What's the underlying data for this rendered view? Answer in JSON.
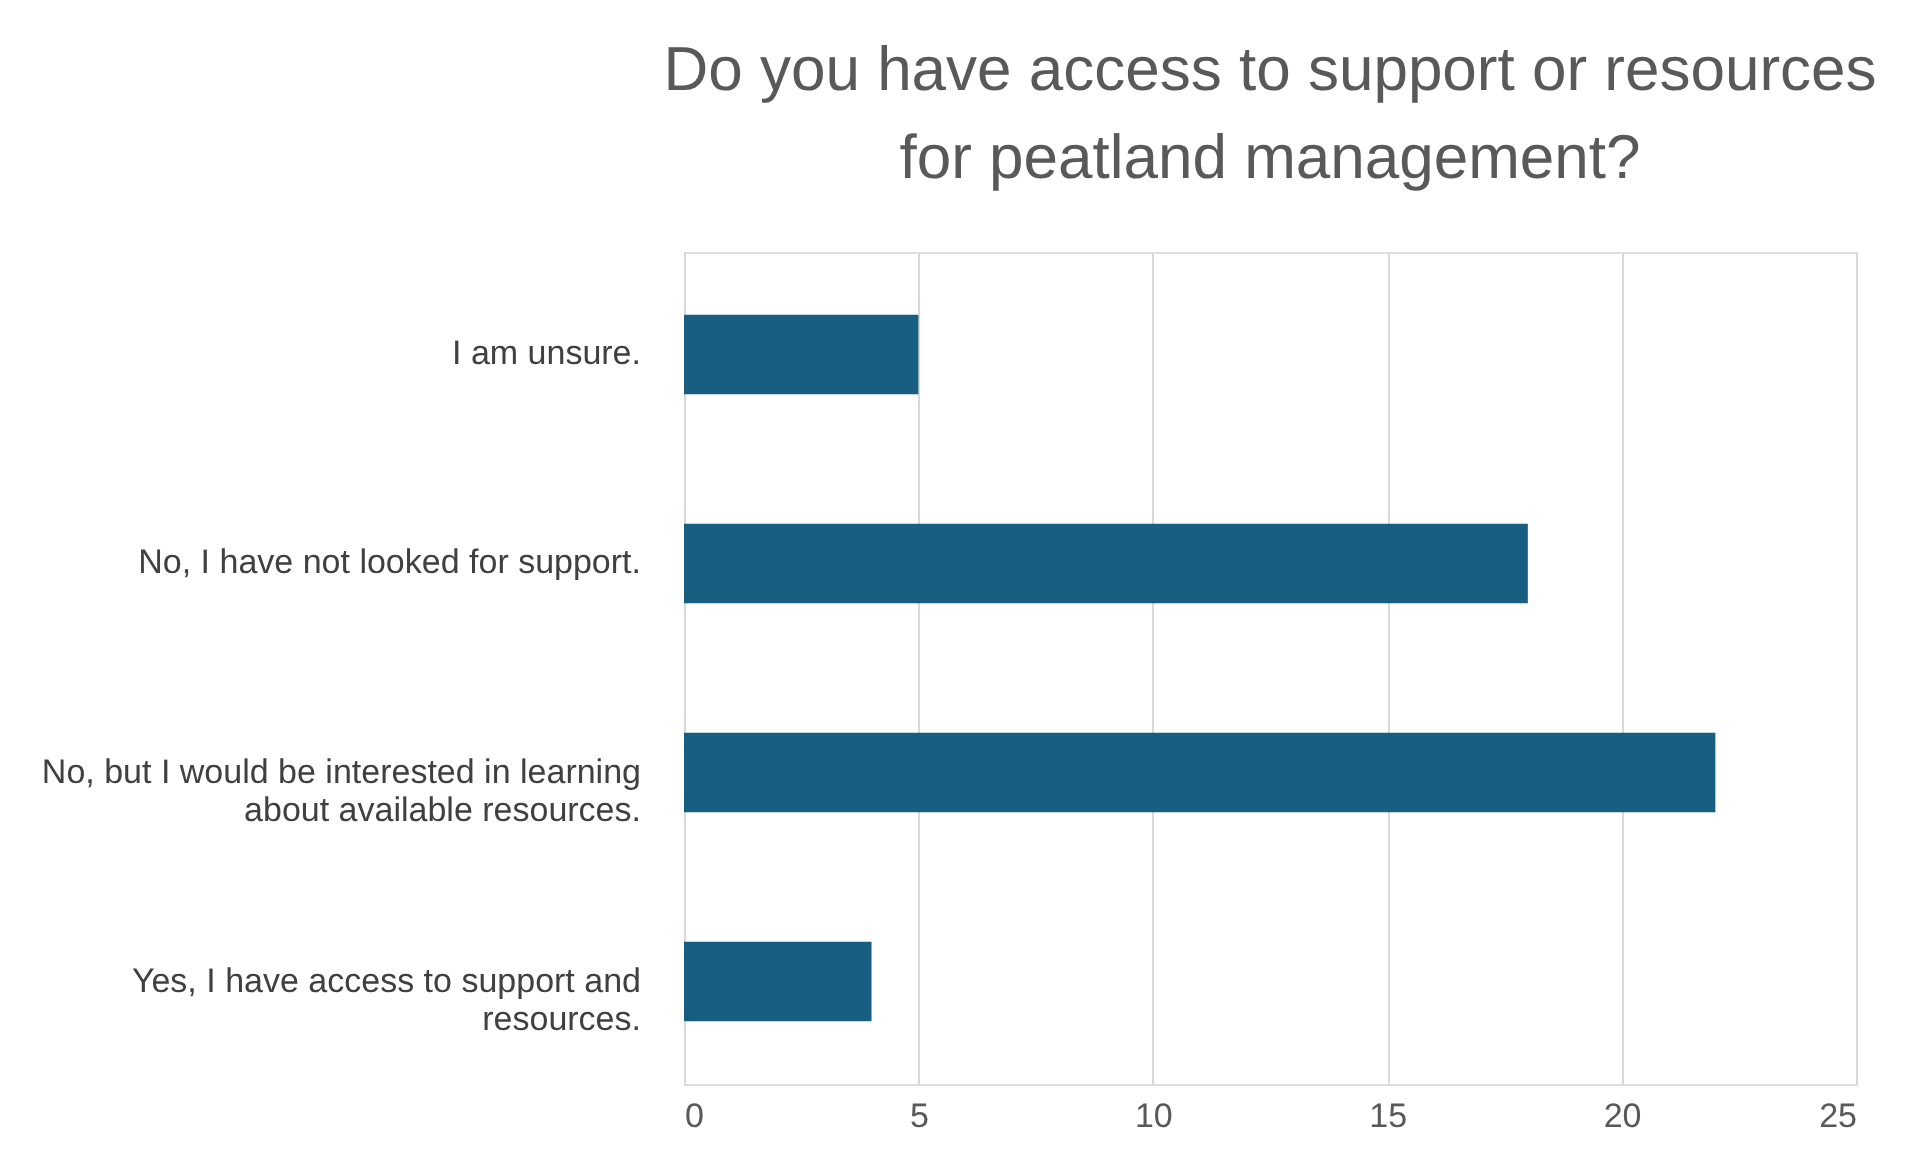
{
  "chart_data": {
    "type": "bar",
    "orientation": "horizontal",
    "title": "Do you have access to support or resources\nfor peatland management?",
    "categories": [
      "I am unsure.",
      "No, I have not looked for support.",
      "No, but I would be interested in learning about available resources.",
      "Yes, I have access to support and resources."
    ],
    "values": [
      5,
      18,
      22,
      4
    ],
    "color": "#175e80",
    "xlim": [
      0,
      25
    ],
    "xticks": [
      0,
      5,
      10,
      15,
      20,
      25
    ],
    "grid": "x"
  }
}
